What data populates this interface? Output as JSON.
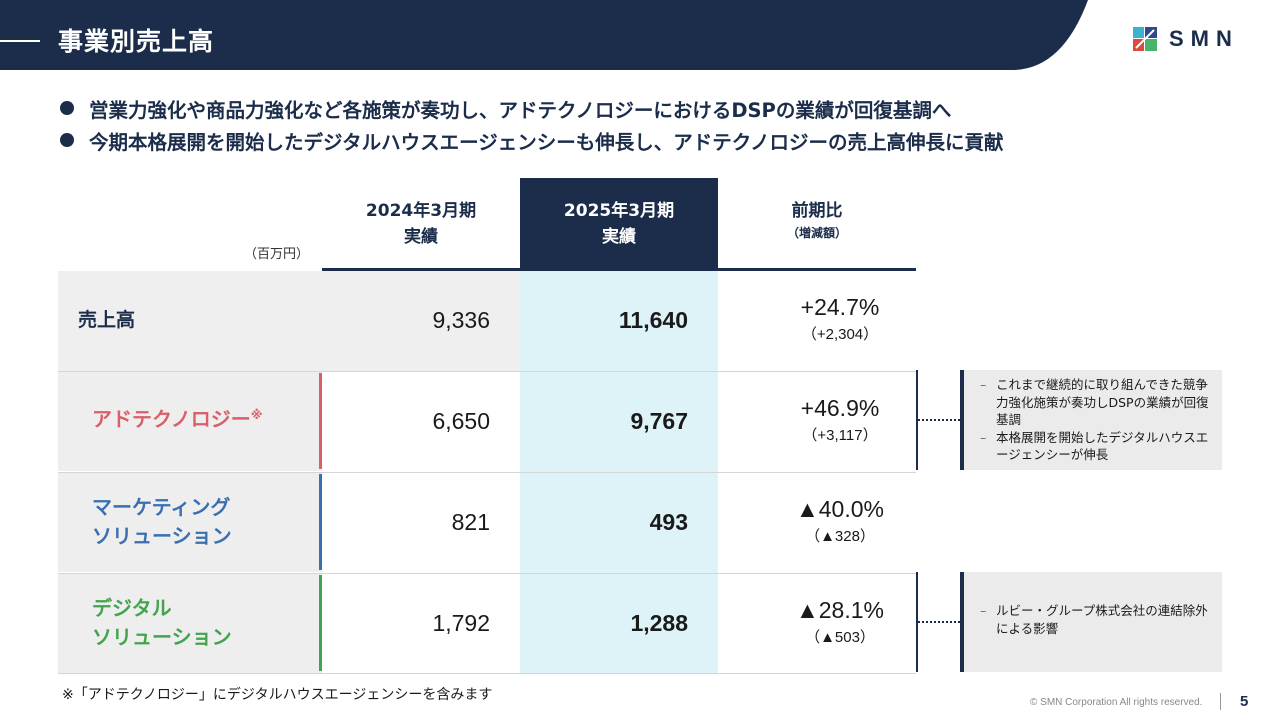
{
  "header": {
    "title": "事業別売上高",
    "brand": "SMN"
  },
  "bullets": [
    "営業力強化や商品力強化など各施策が奏功し、アドテクノロジーにおけるDSPの業績が回復基調へ",
    "今期本格展開を開始したデジタルハウスエージェンシーも伸長し、アドテクノロジーの売上高伸長に貢献"
  ],
  "table": {
    "unit": "（百万円）",
    "columns": [
      {
        "line1": "2024年3月期",
        "line2": "実績"
      },
      {
        "line1": "2025年3月期",
        "line2": "実績"
      },
      {
        "line1": "前期比",
        "line2": "（増減額）"
      }
    ],
    "rows": [
      {
        "label": "売上高",
        "fy2024": "9,336",
        "fy2025": "11,640",
        "change_pct": "+24.7%",
        "change_amt": "（+2,304）"
      },
      {
        "label": "アドテクノロジー",
        "label_mark": "※",
        "fy2024": "6,650",
        "fy2025": "9,767",
        "change_pct": "+46.9%",
        "change_amt": "（+3,117）",
        "color": "#d9606b"
      },
      {
        "label_line1": "マーケティング",
        "label_line2": "ソリューション",
        "fy2024": "821",
        "fy2025": "493",
        "change_pct": "▲40.0%",
        "change_amt": "（▲328）",
        "color": "#3a6fb0"
      },
      {
        "label_line1": "デジタル",
        "label_line2": "ソリューション",
        "fy2024": "1,792",
        "fy2025": "1,288",
        "change_pct": "▲28.1%",
        "change_amt": "（▲503）",
        "color": "#43a34e"
      }
    ]
  },
  "notes": {
    "adtech": [
      "これまで継続的に取り組んできた競争力強化施策が奏功しDSPの業績が回復基調",
      "本格展開を開始したデジタルハウスエージェンシーが伸長"
    ],
    "digital": [
      "ルビー・グループ株式会社の連結除外による影響"
    ]
  },
  "footnote": "※「アドテクノロジー」にデジタルハウスエージェンシーを含みます",
  "footer": {
    "copyright": "© SMN Corporation All rights reserved.",
    "page": "5"
  },
  "colors": {
    "navy": "#1b2d4a",
    "highlight": "#ddf3f8",
    "adtech": "#d9606b",
    "marketing": "#3a6fb0",
    "digital": "#43a34e"
  }
}
